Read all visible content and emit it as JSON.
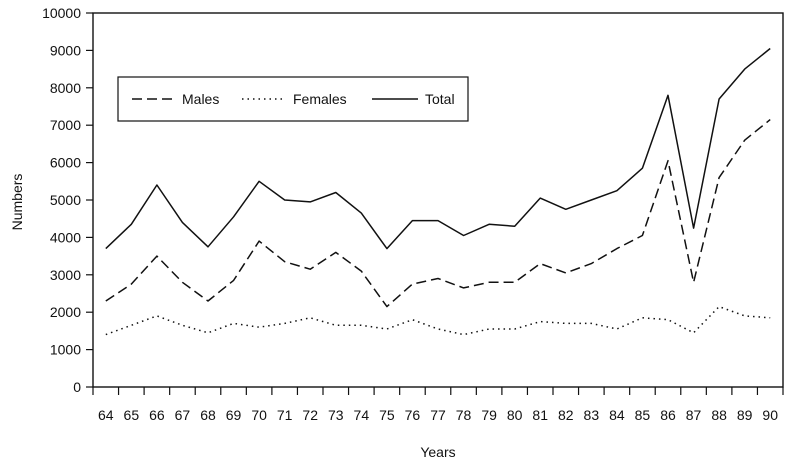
{
  "chart_data": {
    "type": "line",
    "title": "",
    "xlabel": "Years",
    "ylabel": "Numbers",
    "ylim": [
      0,
      10000
    ],
    "yticks": [
      "0",
      "1000",
      "2000",
      "3000",
      "4000",
      "5000",
      "6000",
      "7000",
      "8000",
      "9000",
      "10000"
    ],
    "x": [
      "64",
      "65",
      "66",
      "67",
      "68",
      "69",
      "70",
      "71",
      "72",
      "73",
      "74",
      "75",
      "76",
      "77",
      "78",
      "79",
      "80",
      "81",
      "82",
      "83",
      "84",
      "85",
      "86",
      "87",
      "88",
      "89",
      "90"
    ],
    "grid": false,
    "legend_position": "top-left",
    "series": [
      {
        "name": "Males",
        "style": "dashed",
        "values": [
          2300,
          2750,
          3500,
          2800,
          2300,
          2850,
          3900,
          3350,
          3150,
          3600,
          3100,
          2150,
          2750,
          2900,
          2650,
          2800,
          2800,
          3300,
          3050,
          3300,
          3700,
          4050,
          6050,
          2800,
          5600,
          6600,
          7150
        ]
      },
      {
        "name": "Females",
        "style": "dotted",
        "values": [
          1400,
          1650,
          1900,
          1650,
          1450,
          1700,
          1600,
          1700,
          1850,
          1650,
          1650,
          1550,
          1800,
          1550,
          1400,
          1550,
          1550,
          1750,
          1700,
          1700,
          1550,
          1850,
          1800,
          1450,
          2150,
          1900,
          1850
        ]
      },
      {
        "name": "Total",
        "style": "solid",
        "values": [
          3700,
          4350,
          5400,
          4400,
          3750,
          4550,
          5500,
          5000,
          4950,
          5200,
          4650,
          3700,
          4450,
          4450,
          4050,
          4350,
          4300,
          5050,
          4750,
          5000,
          5250,
          5850,
          7800,
          4250,
          7700,
          8500,
          9050
        ]
      }
    ]
  }
}
